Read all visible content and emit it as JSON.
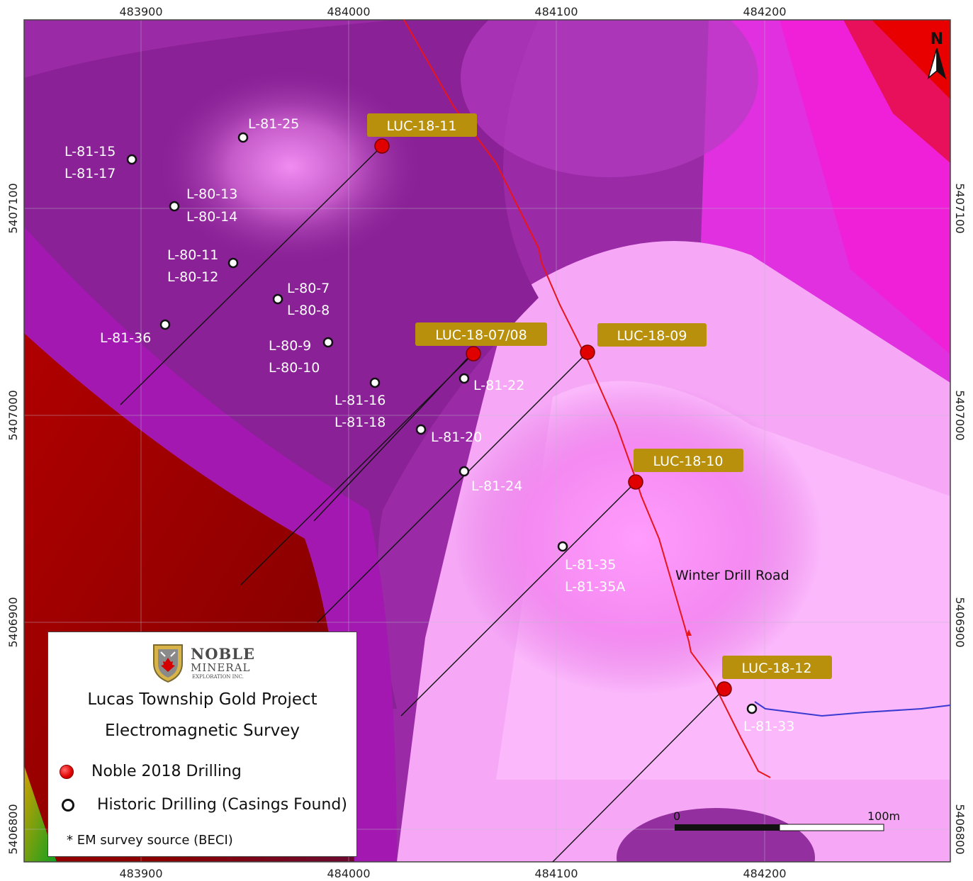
{
  "map": {
    "x_ticks": [
      "483900",
      "484000",
      "484100",
      "484200"
    ],
    "y_ticks": [
      "5407100",
      "5407000",
      "5406900",
      "5406800"
    ],
    "north_label": "N",
    "road_label": "Winter Drill Road",
    "scale": {
      "start": "0",
      "end": "100m"
    },
    "noble_holes": [
      "LUC-18-11",
      "LUC-18-07/08",
      "LUC-18-09",
      "LUC-18-10",
      "LUC-18-12"
    ],
    "historic_labels": [
      "L-81-25",
      "L-81-15",
      "L-81-17",
      "L-80-13",
      "L-80-14",
      "L-80-11",
      "L-80-12",
      "L-80-7",
      "L-80-8",
      "L-81-36",
      "L-80-9",
      "L-80-10",
      "L-81-16",
      "L-81-18",
      "L-81-22",
      "L-81-20",
      "L-81-24",
      "L-81-35",
      "L-81-35A",
      "L-81-33"
    ],
    "colors": {
      "road": "#e8151b",
      "creek": "#3a3ad0",
      "noble_label_bg": "#b8900c",
      "noble_hole": "#e00000"
    }
  },
  "legend": {
    "logo": {
      "line1": "NOBLE",
      "line2": "MINERAL",
      "line3": "EXPLORATION INC."
    },
    "title1": "Lucas Township Gold Project",
    "title2": "Electromagnetic Survey",
    "item_noble": "Noble 2018 Drilling",
    "item_historic": "Historic Drilling (Casings Found)",
    "note": "* EM survey source (BECI)"
  }
}
